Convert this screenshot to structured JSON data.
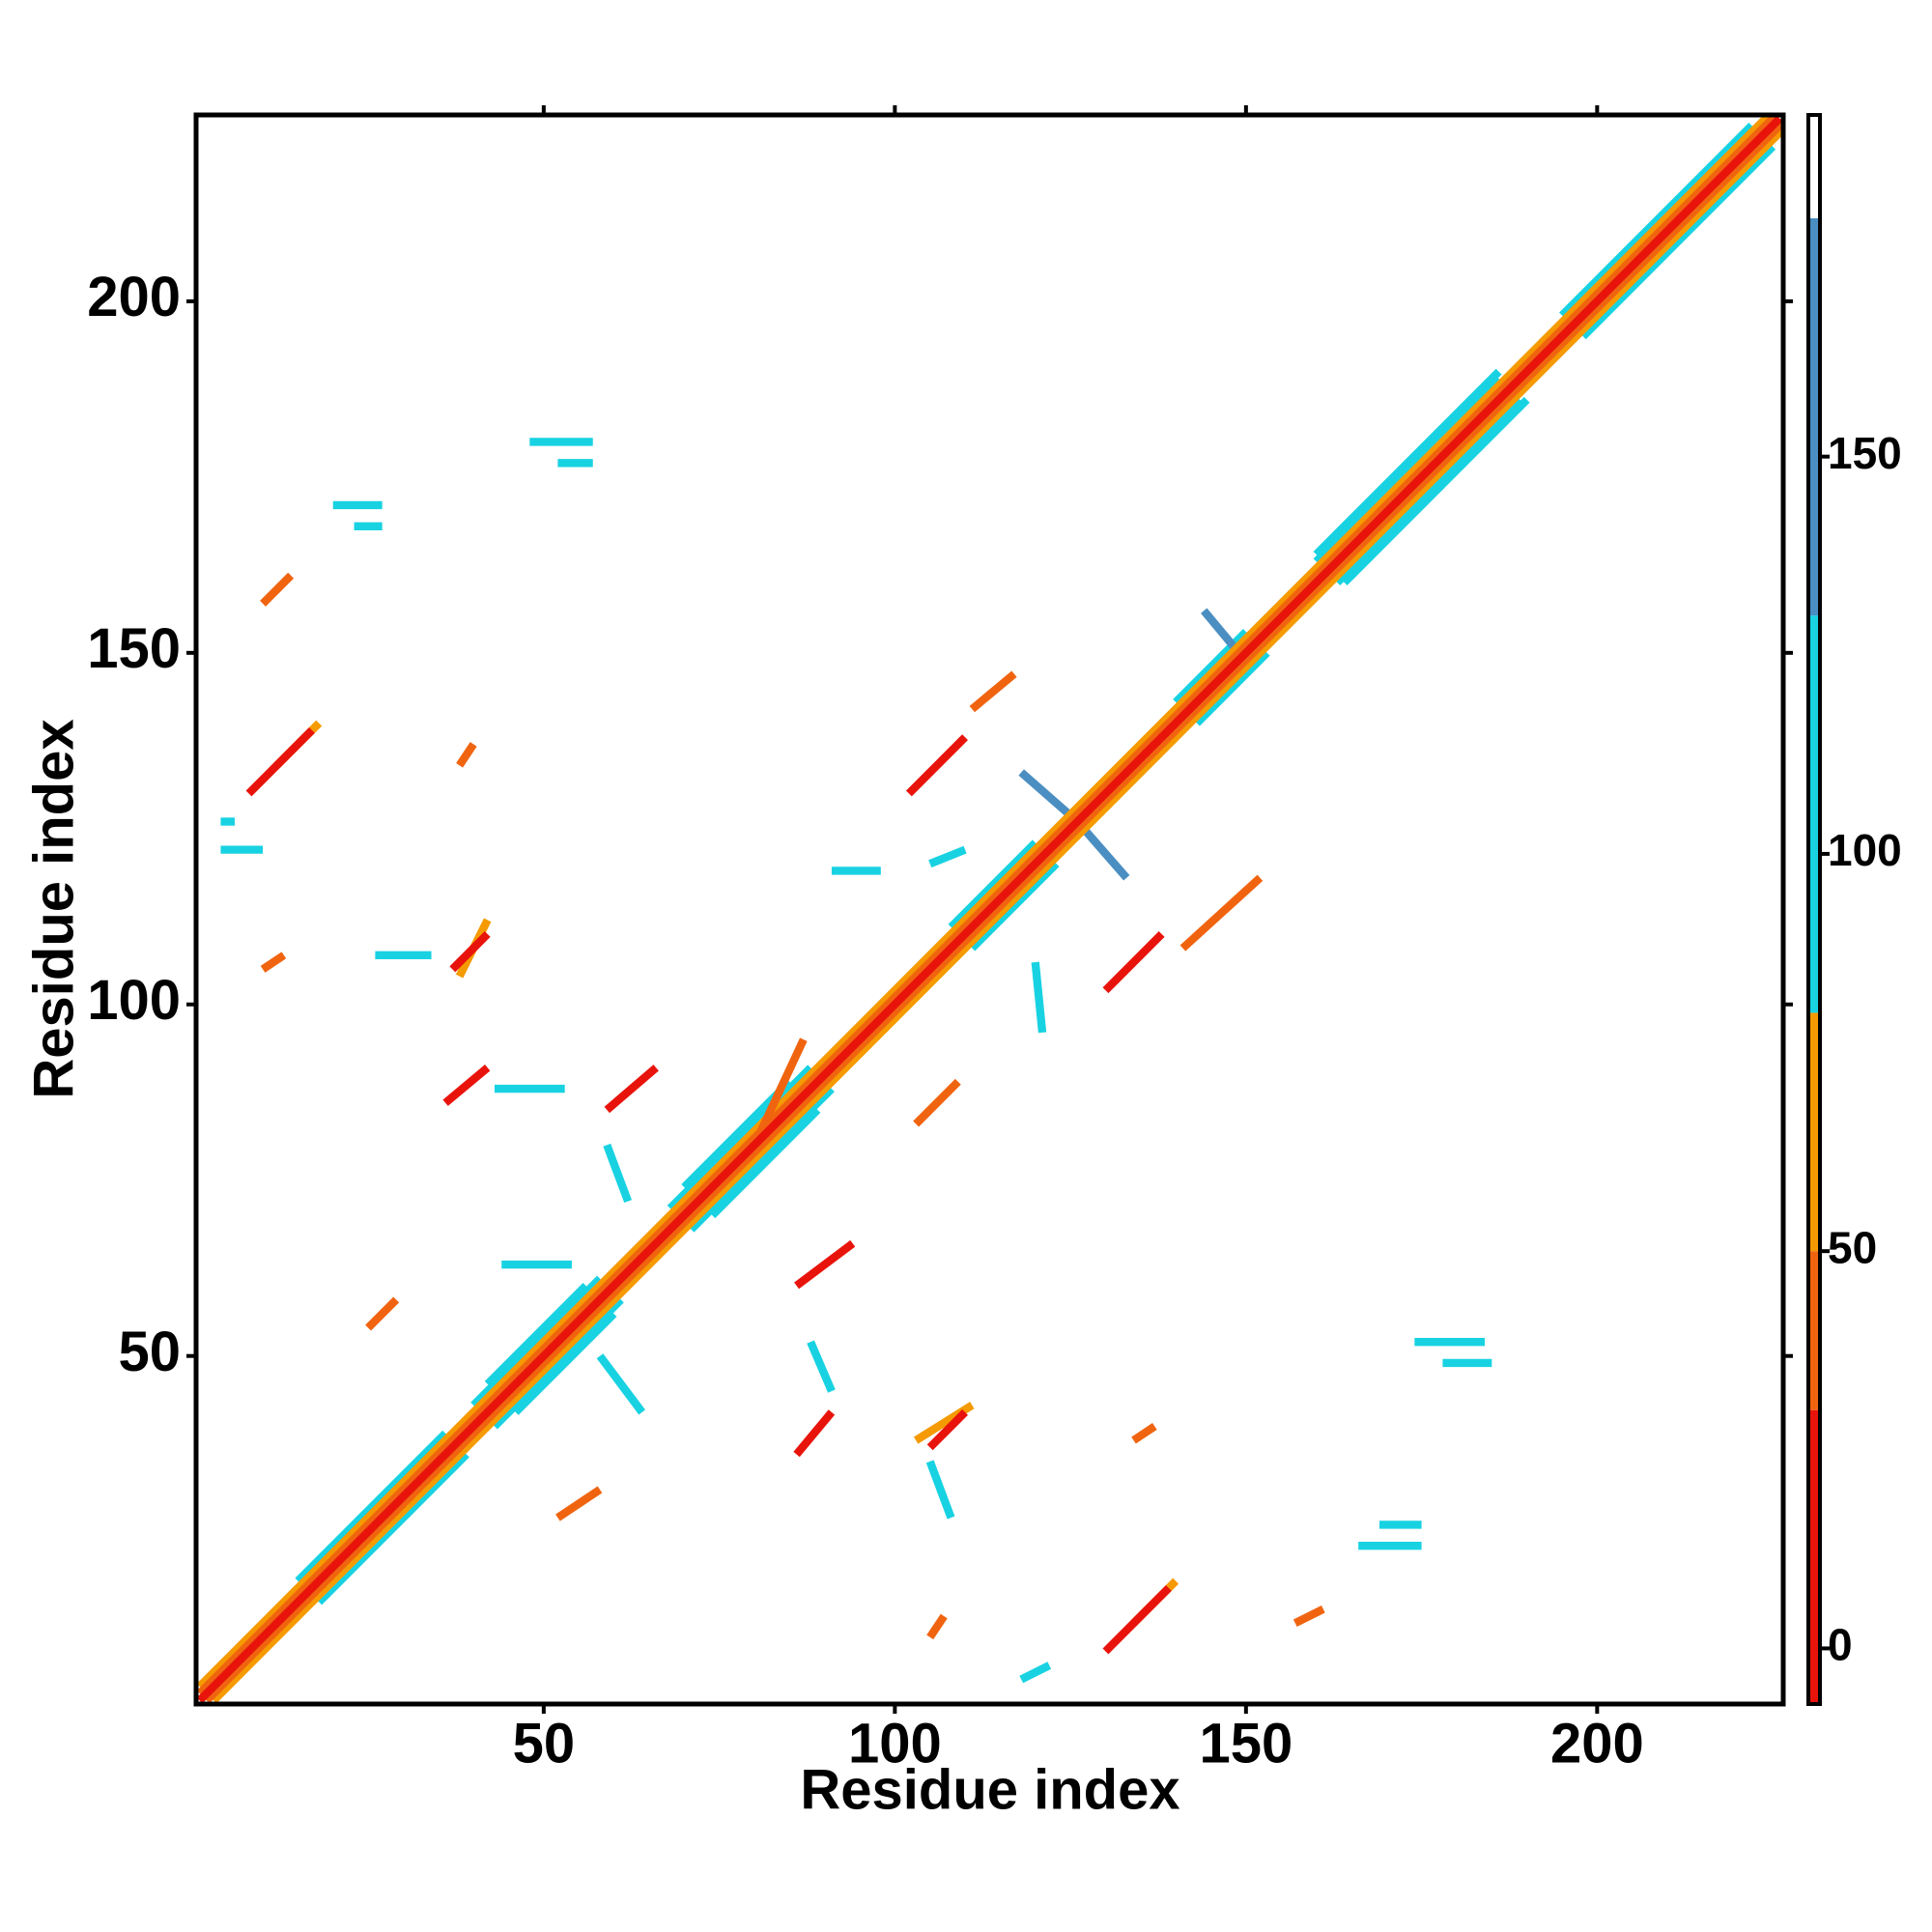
{
  "chart_data": {
    "type": "contact-map",
    "x_label": "Residue index",
    "y_label": "Residue index",
    "xlim": [
      0.5,
      226.5
    ],
    "ylim": [
      0.5,
      226.5
    ],
    "xticks": [
      50,
      100,
      150,
      200
    ],
    "yticks": [
      50,
      100,
      150,
      200
    ],
    "colorbar": {
      "lim": [
        -7,
        193
      ],
      "ticks": [
        0,
        50,
        100,
        150
      ],
      "bands": [
        {
          "range": [
            -7,
            30
          ],
          "color": "#e8140c"
        },
        {
          "range": [
            30,
            50
          ],
          "color": "#f06410"
        },
        {
          "range": [
            50,
            80
          ],
          "color": "#f59a00"
        },
        {
          "range": [
            80,
            130
          ],
          "color": "#18d2e2"
        },
        {
          "range": [
            130,
            180
          ],
          "color": "#4a8ec2"
        },
        {
          "range": [
            180,
            193
          ],
          "color": "#ffffff"
        }
      ]
    },
    "segments": [
      {
        "x": [
          15,
          36
        ],
        "y": [
          18,
          39
        ],
        "value": 100
      },
      {
        "x": [
          18,
          39
        ],
        "y": [
          15,
          36
        ],
        "value": 100
      },
      {
        "x": [
          40,
          58
        ],
        "y": [
          43,
          61
        ],
        "value": 100
      },
      {
        "x": [
          43,
          61
        ],
        "y": [
          40,
          58
        ],
        "value": 100
      },
      {
        "x": [
          42,
          56
        ],
        "y": [
          46,
          60
        ],
        "value": 100
      },
      {
        "x": [
          46,
          60
        ],
        "y": [
          42,
          56
        ],
        "value": 100
      },
      {
        "x": [
          68,
          88
        ],
        "y": [
          71,
          91
        ],
        "value": 100
      },
      {
        "x": [
          71,
          91
        ],
        "y": [
          68,
          88
        ],
        "value": 100
      },
      {
        "x": [
          70,
          85
        ],
        "y": [
          74,
          89
        ],
        "value": 100
      },
      {
        "x": [
          74,
          89
        ],
        "y": [
          70,
          85
        ],
        "value": 100
      },
      {
        "x": [
          108,
          120
        ],
        "y": [
          111,
          123
        ],
        "value": 100
      },
      {
        "x": [
          111,
          123
        ],
        "y": [
          108,
          120
        ],
        "value": 100
      },
      {
        "x": [
          140,
          150
        ],
        "y": [
          143,
          153
        ],
        "value": 100
      },
      {
        "x": [
          143,
          153
        ],
        "y": [
          140,
          150
        ],
        "value": 100
      },
      {
        "x": [
          160,
          186
        ],
        "y": [
          163,
          189
        ],
        "value": 100
      },
      {
        "x": [
          163,
          189
        ],
        "y": [
          160,
          186
        ],
        "value": 100
      },
      {
        "x": [
          160,
          186
        ],
        "y": [
          164,
          190
        ],
        "value": 100
      },
      {
        "x": [
          164,
          190
        ],
        "y": [
          160,
          186
        ],
        "value": 100
      },
      {
        "x": [
          195,
          222
        ],
        "y": [
          198,
          225
        ],
        "value": 100
      },
      {
        "x": [
          198,
          225
        ],
        "y": [
          195,
          222
        ],
        "value": 100
      },
      {
        "x": [
          118,
          126
        ],
        "y": [
          133,
          126
        ],
        "value": 150
      },
      {
        "x": [
          126,
          133
        ],
        "y": [
          126,
          118
        ],
        "value": 150
      },
      {
        "x": [
          48,
          57
        ],
        "y": [
          180,
          180
        ],
        "value": 100
      },
      {
        "x": [
          52,
          57
        ],
        "y": [
          177,
          177
        ],
        "value": 100
      },
      {
        "x": [
          174,
          184
        ],
        "y": [
          52,
          52
        ],
        "value": 100
      },
      {
        "x": [
          178,
          185
        ],
        "y": [
          49,
          49
        ],
        "value": 100
      },
      {
        "x": [
          20,
          27
        ],
        "y": [
          171,
          171
        ],
        "value": 100
      },
      {
        "x": [
          23,
          27
        ],
        "y": [
          168,
          168
        ],
        "value": 100
      },
      {
        "x": [
          166,
          175
        ],
        "y": [
          23,
          23
        ],
        "value": 100
      },
      {
        "x": [
          169,
          175
        ],
        "y": [
          26,
          26
        ],
        "value": 100
      },
      {
        "x": [
          4,
          10
        ],
        "y": [
          122,
          122
        ],
        "value": 100
      },
      {
        "x": [
          4,
          6
        ],
        "y": [
          126,
          126
        ],
        "value": 100
      },
      {
        "x": [
          26,
          34
        ],
        "y": [
          107,
          107
        ],
        "value": 100
      },
      {
        "x": [
          43,
          53
        ],
        "y": [
          88,
          88
        ],
        "value": 100
      },
      {
        "x": [
          44,
          54
        ],
        "y": [
          63,
          63
        ],
        "value": 100
      },
      {
        "x": [
          58,
          64
        ],
        "y": [
          50,
          42
        ],
        "value": 100
      },
      {
        "x": [
          88,
          91
        ],
        "y": [
          52,
          45
        ],
        "value": 100
      },
      {
        "x": [
          105,
          108
        ],
        "y": [
          35,
          27
        ],
        "value": 100
      },
      {
        "x": [
          120,
          121
        ],
        "y": [
          106,
          96
        ],
        "value": 100
      },
      {
        "x": [
          91,
          98
        ],
        "y": [
          119,
          119
        ],
        "value": 100
      },
      {
        "x": [
          105,
          110
        ],
        "y": [
          120,
          122
        ],
        "value": 100
      },
      {
        "x": [
          118,
          122
        ],
        "y": [
          4,
          6
        ],
        "value": 100
      },
      {
        "x": [
          144,
          149
        ],
        "y": [
          156,
          150
        ],
        "value": 150
      },
      {
        "x": [
          59,
          62
        ],
        "y": [
          80,
          72
        ],
        "value": 100
      },
      {
        "x": [
          1,
          226
        ],
        "y": [
          3,
          228
        ],
        "value": 60
      },
      {
        "x": [
          3,
          228
        ],
        "y": [
          1,
          226
        ],
        "value": 60
      },
      {
        "x": [
          1,
          226
        ],
        "y": [
          2,
          227
        ],
        "value": 40
      },
      {
        "x": [
          2,
          227
        ],
        "y": [
          1,
          226
        ],
        "value": 40
      },
      {
        "x": [
          12,
          18
        ],
        "y": [
          134,
          140
        ],
        "value": 60
      },
      {
        "x": [
          134,
          140
        ],
        "y": [
          12,
          18
        ],
        "value": 60
      },
      {
        "x": [
          10,
          14
        ],
        "y": [
          157,
          161
        ],
        "value": 40
      },
      {
        "x": [
          157,
          161
        ],
        "y": [
          12,
          14
        ],
        "value": 40
      },
      {
        "x": [
          38,
          40
        ],
        "y": [
          134,
          137
        ],
        "value": 40
      },
      {
        "x": [
          134,
          137
        ],
        "y": [
          38,
          40
        ],
        "value": 40
      },
      {
        "x": [
          10,
          13
        ],
        "y": [
          105,
          107
        ],
        "value": 40
      },
      {
        "x": [
          105,
          107
        ],
        "y": [
          10,
          13
        ],
        "value": 40
      },
      {
        "x": [
          80,
          87
        ],
        "y": [
          80,
          95
        ],
        "value": 40
      },
      {
        "x": [
          103,
          109
        ],
        "y": [
          83,
          89
        ],
        "value": 40
      },
      {
        "x": [
          141,
          152
        ],
        "y": [
          108,
          118
        ],
        "value": 40
      },
      {
        "x": [
          111,
          117
        ],
        "y": [
          142,
          147
        ],
        "value": 40
      },
      {
        "x": [
          25,
          29
        ],
        "y": [
          54,
          58
        ],
        "value": 40
      },
      {
        "x": [
          52,
          58
        ],
        "y": [
          27,
          31
        ],
        "value": 40
      },
      {
        "x": [
          38,
          42
        ],
        "y": [
          104,
          112
        ],
        "value": 60
      },
      {
        "x": [
          103,
          111
        ],
        "y": [
          38,
          43
        ],
        "value": 60
      },
      {
        "x": [
          1,
          226
        ],
        "y": [
          1,
          226
        ],
        "value": 10
      },
      {
        "x": [
          8,
          17
        ],
        "y": [
          130,
          139
        ],
        "value": 10
      },
      {
        "x": [
          130,
          139
        ],
        "y": [
          8,
          17
        ],
        "value": 10
      },
      {
        "x": [
          37,
          42
        ],
        "y": [
          105,
          110
        ],
        "value": 10
      },
      {
        "x": [
          105,
          110
        ],
        "y": [
          37,
          42
        ],
        "value": 10
      },
      {
        "x": [
          36,
          42
        ],
        "y": [
          86,
          91
        ],
        "value": 10
      },
      {
        "x": [
          86,
          91
        ],
        "y": [
          36,
          42
        ],
        "value": 10
      },
      {
        "x": [
          59,
          66
        ],
        "y": [
          85,
          91
        ],
        "value": 10
      },
      {
        "x": [
          86,
          94
        ],
        "y": [
          60,
          66
        ],
        "value": 10
      },
      {
        "x": [
          102,
          110
        ],
        "y": [
          130,
          138
        ],
        "value": 10
      },
      {
        "x": [
          130,
          138
        ],
        "y": [
          102,
          110
        ],
        "value": 10
      }
    ]
  }
}
